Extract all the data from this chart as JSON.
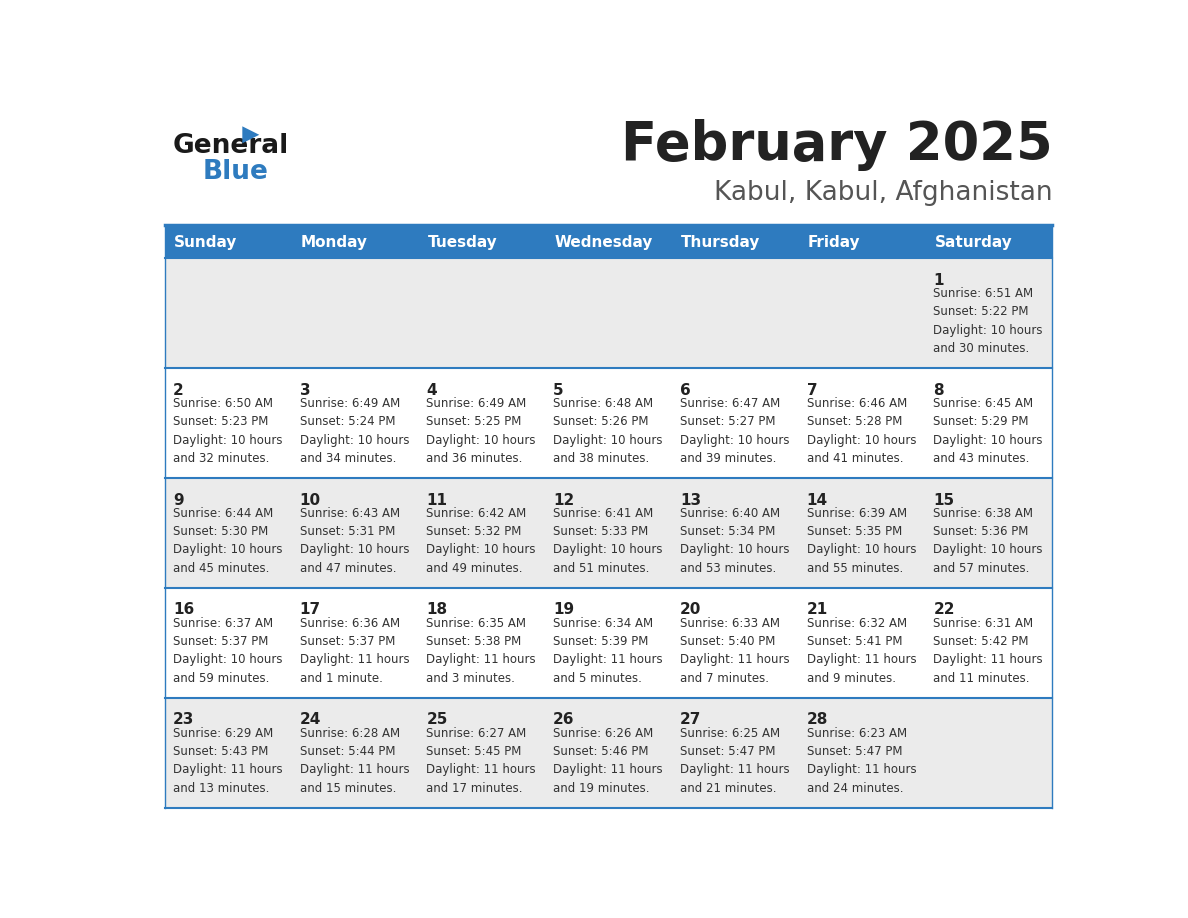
{
  "title": "February 2025",
  "subtitle": "Kabul, Kabul, Afghanistan",
  "header_bg_color": "#2E7BBF",
  "header_text_color": "#FFFFFF",
  "days_of_week": [
    "Sunday",
    "Monday",
    "Tuesday",
    "Wednesday",
    "Thursday",
    "Friday",
    "Saturday"
  ],
  "cell_bg_row0": "#EBEBEB",
  "cell_bg_row1": "#FFFFFF",
  "cell_bg_row2": "#EBEBEB",
  "cell_bg_row3": "#FFFFFF",
  "cell_bg_row4": "#EBEBEB",
  "cell_border_color": "#2E7BBF",
  "day_num_color": "#222222",
  "info_text_color": "#333333",
  "title_color": "#222222",
  "subtitle_color": "#555555",
  "logo_general_color": "#1a1a1a",
  "logo_blue_color": "#2E7BBF",
  "calendar_data": [
    [
      {
        "day": null,
        "info": ""
      },
      {
        "day": null,
        "info": ""
      },
      {
        "day": null,
        "info": ""
      },
      {
        "day": null,
        "info": ""
      },
      {
        "day": null,
        "info": ""
      },
      {
        "day": null,
        "info": ""
      },
      {
        "day": 1,
        "info": "Sunrise: 6:51 AM\nSunset: 5:22 PM\nDaylight: 10 hours\nand 30 minutes."
      }
    ],
    [
      {
        "day": 2,
        "info": "Sunrise: 6:50 AM\nSunset: 5:23 PM\nDaylight: 10 hours\nand 32 minutes."
      },
      {
        "day": 3,
        "info": "Sunrise: 6:49 AM\nSunset: 5:24 PM\nDaylight: 10 hours\nand 34 minutes."
      },
      {
        "day": 4,
        "info": "Sunrise: 6:49 AM\nSunset: 5:25 PM\nDaylight: 10 hours\nand 36 minutes."
      },
      {
        "day": 5,
        "info": "Sunrise: 6:48 AM\nSunset: 5:26 PM\nDaylight: 10 hours\nand 38 minutes."
      },
      {
        "day": 6,
        "info": "Sunrise: 6:47 AM\nSunset: 5:27 PM\nDaylight: 10 hours\nand 39 minutes."
      },
      {
        "day": 7,
        "info": "Sunrise: 6:46 AM\nSunset: 5:28 PM\nDaylight: 10 hours\nand 41 minutes."
      },
      {
        "day": 8,
        "info": "Sunrise: 6:45 AM\nSunset: 5:29 PM\nDaylight: 10 hours\nand 43 minutes."
      }
    ],
    [
      {
        "day": 9,
        "info": "Sunrise: 6:44 AM\nSunset: 5:30 PM\nDaylight: 10 hours\nand 45 minutes."
      },
      {
        "day": 10,
        "info": "Sunrise: 6:43 AM\nSunset: 5:31 PM\nDaylight: 10 hours\nand 47 minutes."
      },
      {
        "day": 11,
        "info": "Sunrise: 6:42 AM\nSunset: 5:32 PM\nDaylight: 10 hours\nand 49 minutes."
      },
      {
        "day": 12,
        "info": "Sunrise: 6:41 AM\nSunset: 5:33 PM\nDaylight: 10 hours\nand 51 minutes."
      },
      {
        "day": 13,
        "info": "Sunrise: 6:40 AM\nSunset: 5:34 PM\nDaylight: 10 hours\nand 53 minutes."
      },
      {
        "day": 14,
        "info": "Sunrise: 6:39 AM\nSunset: 5:35 PM\nDaylight: 10 hours\nand 55 minutes."
      },
      {
        "day": 15,
        "info": "Sunrise: 6:38 AM\nSunset: 5:36 PM\nDaylight: 10 hours\nand 57 minutes."
      }
    ],
    [
      {
        "day": 16,
        "info": "Sunrise: 6:37 AM\nSunset: 5:37 PM\nDaylight: 10 hours\nand 59 minutes."
      },
      {
        "day": 17,
        "info": "Sunrise: 6:36 AM\nSunset: 5:37 PM\nDaylight: 11 hours\nand 1 minute."
      },
      {
        "day": 18,
        "info": "Sunrise: 6:35 AM\nSunset: 5:38 PM\nDaylight: 11 hours\nand 3 minutes."
      },
      {
        "day": 19,
        "info": "Sunrise: 6:34 AM\nSunset: 5:39 PM\nDaylight: 11 hours\nand 5 minutes."
      },
      {
        "day": 20,
        "info": "Sunrise: 6:33 AM\nSunset: 5:40 PM\nDaylight: 11 hours\nand 7 minutes."
      },
      {
        "day": 21,
        "info": "Sunrise: 6:32 AM\nSunset: 5:41 PM\nDaylight: 11 hours\nand 9 minutes."
      },
      {
        "day": 22,
        "info": "Sunrise: 6:31 AM\nSunset: 5:42 PM\nDaylight: 11 hours\nand 11 minutes."
      }
    ],
    [
      {
        "day": 23,
        "info": "Sunrise: 6:29 AM\nSunset: 5:43 PM\nDaylight: 11 hours\nand 13 minutes."
      },
      {
        "day": 24,
        "info": "Sunrise: 6:28 AM\nSunset: 5:44 PM\nDaylight: 11 hours\nand 15 minutes."
      },
      {
        "day": 25,
        "info": "Sunrise: 6:27 AM\nSunset: 5:45 PM\nDaylight: 11 hours\nand 17 minutes."
      },
      {
        "day": 26,
        "info": "Sunrise: 6:26 AM\nSunset: 5:46 PM\nDaylight: 11 hours\nand 19 minutes."
      },
      {
        "day": 27,
        "info": "Sunrise: 6:25 AM\nSunset: 5:47 PM\nDaylight: 11 hours\nand 21 minutes."
      },
      {
        "day": 28,
        "info": "Sunrise: 6:23 AM\nSunset: 5:47 PM\nDaylight: 11 hours\nand 24 minutes."
      },
      {
        "day": null,
        "info": ""
      }
    ]
  ],
  "row_bg_colors": [
    "#EBEBEB",
    "#FFFFFF",
    "#EBEBEB",
    "#FFFFFF",
    "#EBEBEB"
  ]
}
